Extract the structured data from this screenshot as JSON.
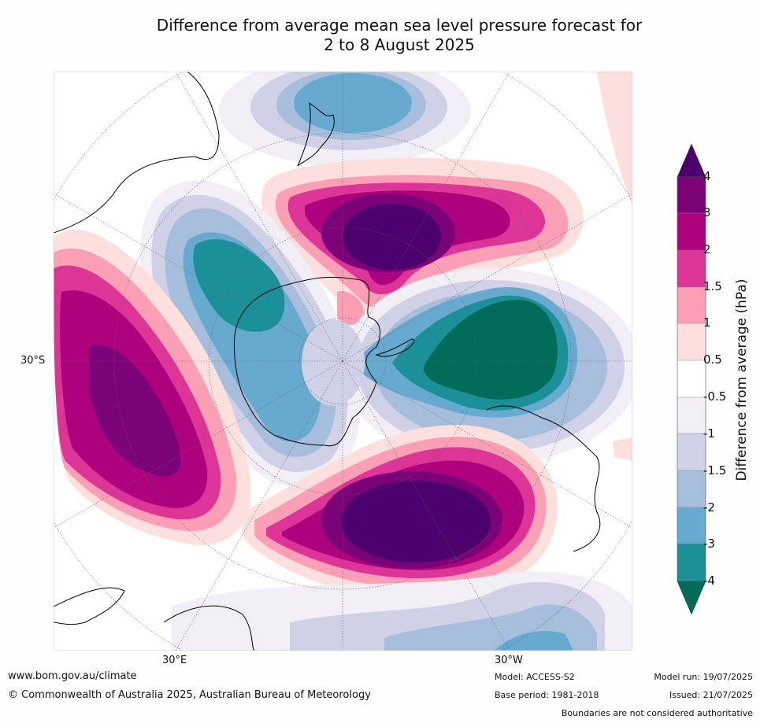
{
  "title_line1": "Difference from average mean sea level pressure forecast for",
  "title_line2": "2 to 8 August 2025",
  "map": {
    "projection": "south-polar-stereographic",
    "lat_label": "30°S",
    "lon_labels": [
      "30°E",
      "30°W"
    ]
  },
  "colorbar": {
    "label": "Difference from average (hPa)",
    "ticks": [
      "4",
      "3",
      "2",
      "1.5",
      "1",
      "0.5",
      "-0.5",
      "-1",
      "-1.5",
      "-2",
      "-3",
      "-4"
    ],
    "colors": {
      "above_4": "#4b006e",
      "3_to_4": "#7a0177",
      "2_to_3": "#ae017e",
      "1.5_to_2": "#dd3497",
      "1_to_1.5": "#fa9fb5",
      "0.5_to_1": "#fde0dd",
      "neutral": "#ffffff",
      "-1_to_-0.5": "#f1eef6",
      "-1.5_to_-1": "#d0d1e6",
      "-2_to_-1.5": "#a6bddb",
      "-3_to_-2": "#67a9cf",
      "-4_to_-3": "#1c9099",
      "below_-4": "#016c59"
    }
  },
  "footer": {
    "url": "www.bom.gov.au/climate",
    "copyright": "© Commonwealth of Australia 2025, Australian Bureau of Meteorology",
    "model": "Model: ACCESS-S2",
    "base_period": "Base period: 1981-2018",
    "model_run": "Model run: 19/07/2025",
    "issued": "Issued: 21/07/2025",
    "disclaimer": "Boundaries are not considered authoritative"
  }
}
